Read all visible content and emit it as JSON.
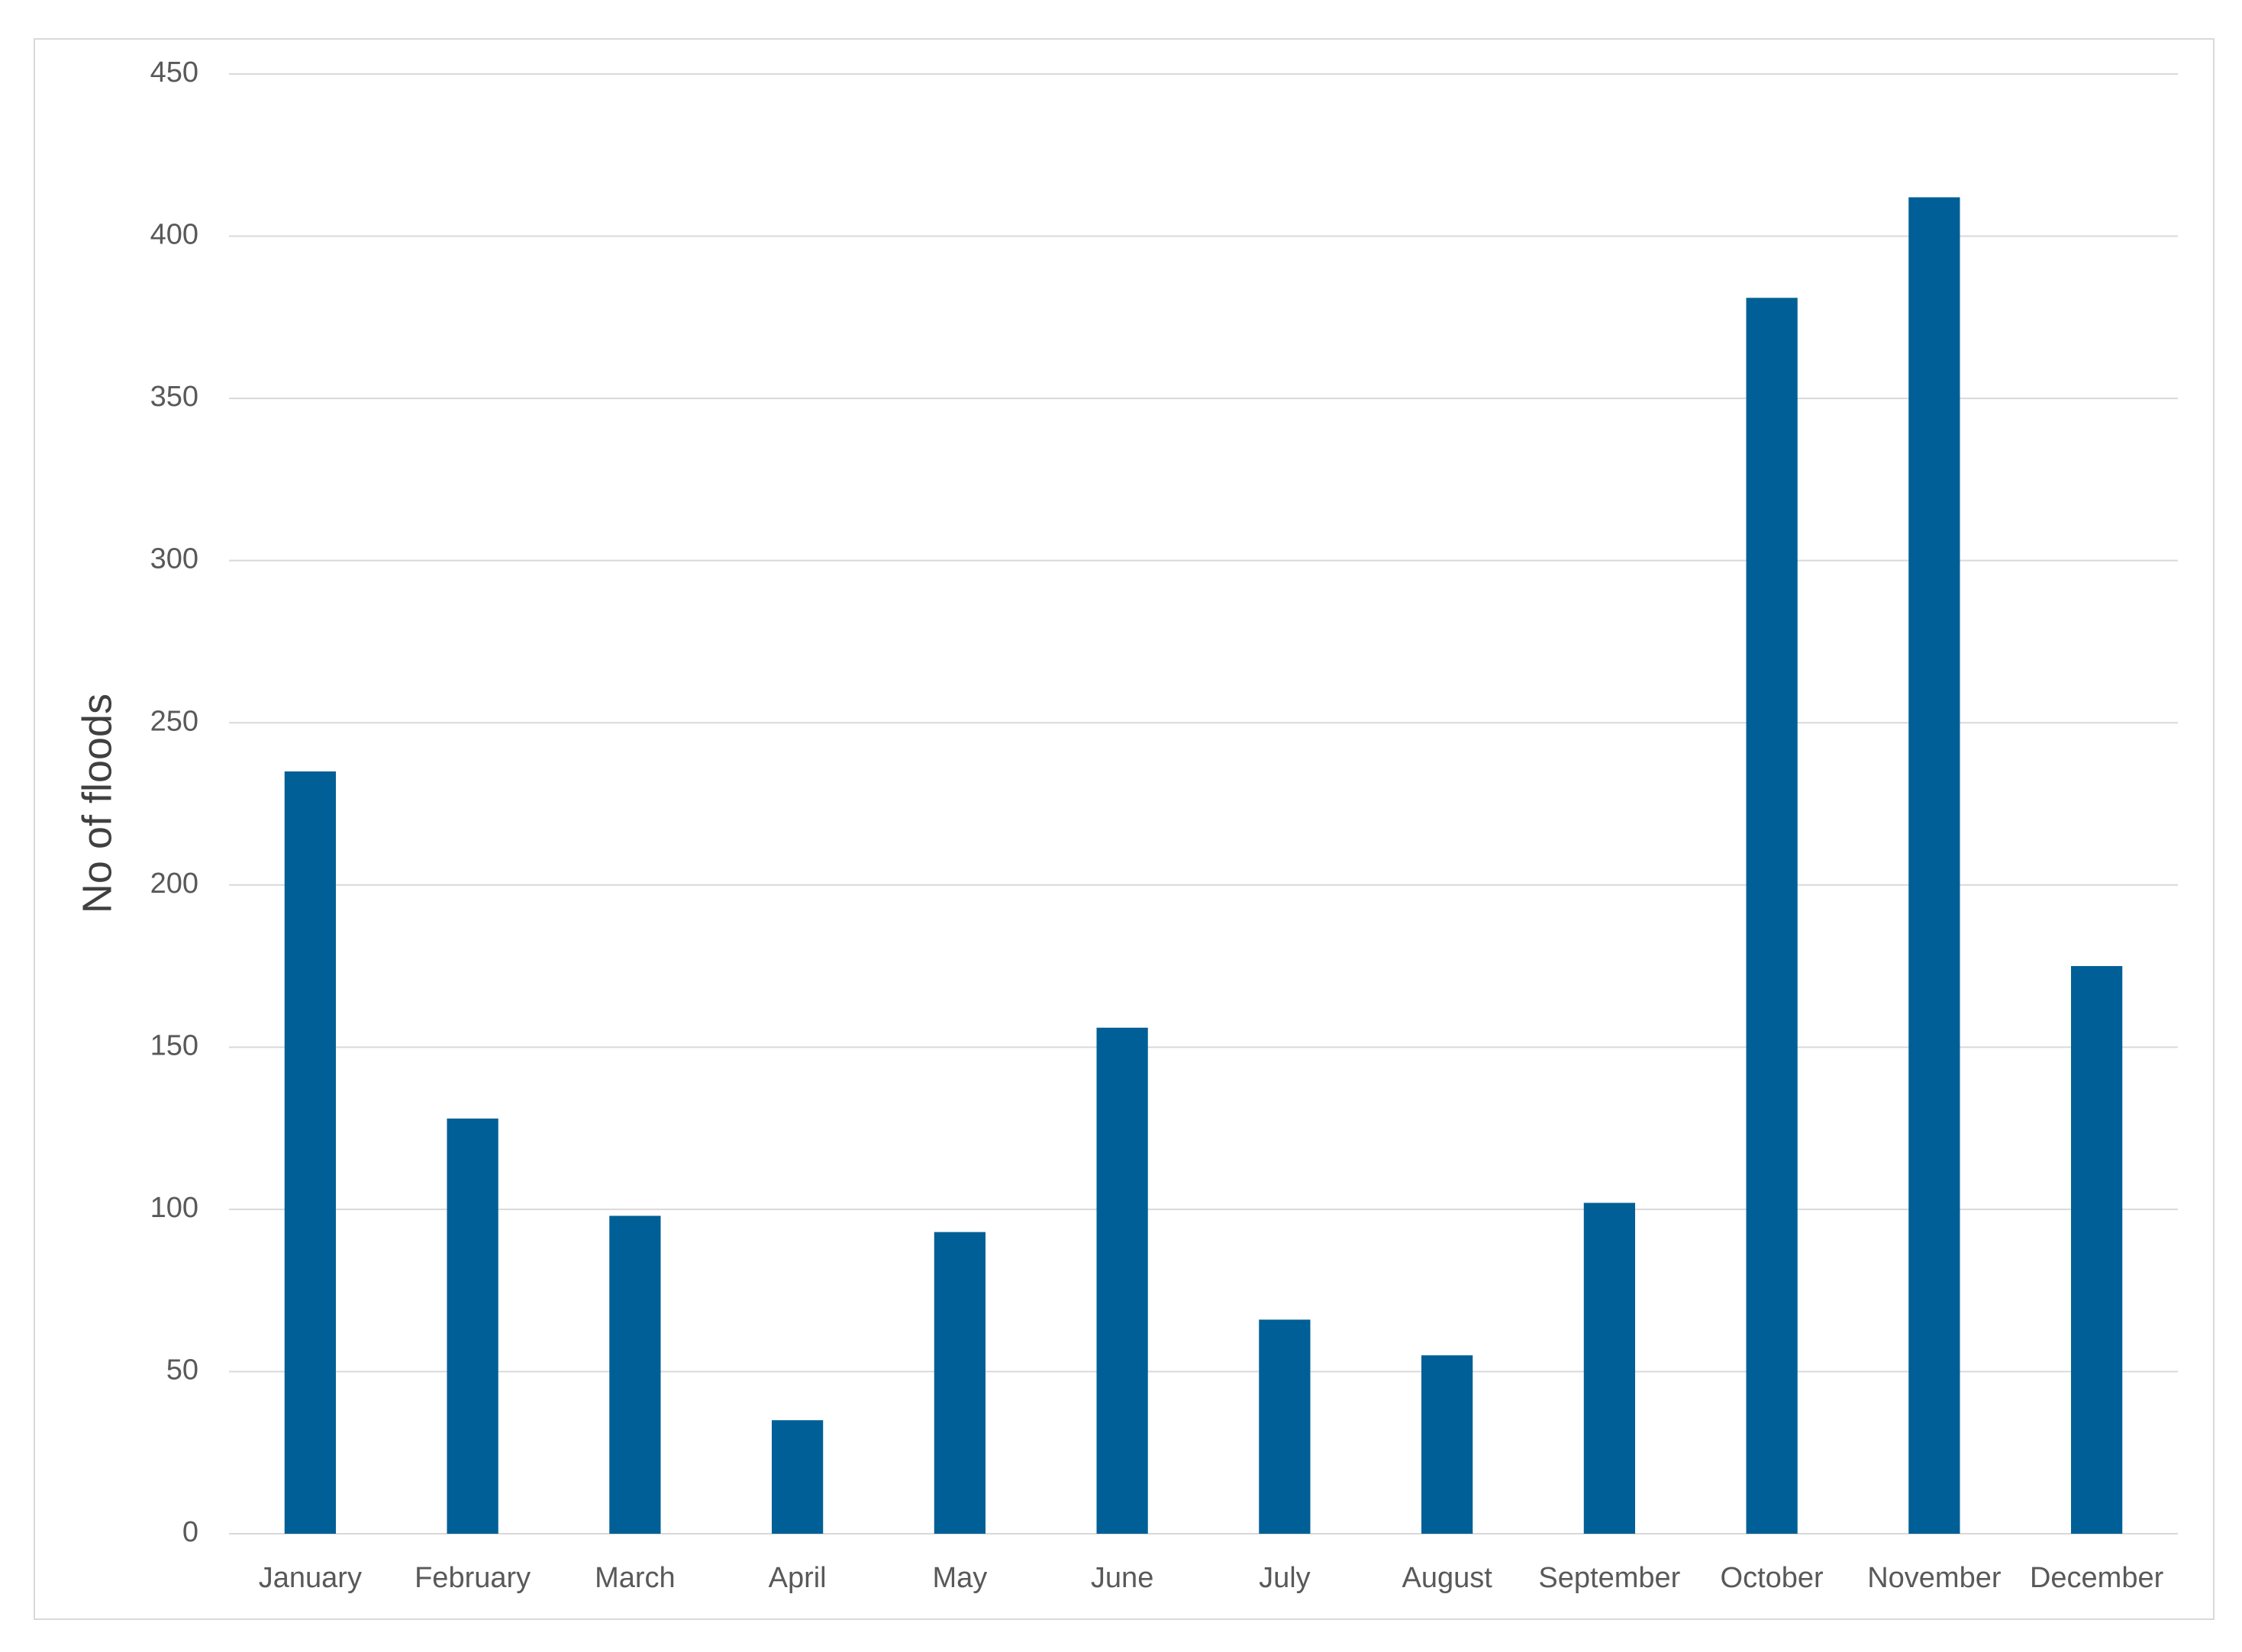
{
  "chart_data": {
    "type": "bar",
    "y_label": "No of floods",
    "categories": [
      "January",
      "February",
      "March",
      "April",
      "May",
      "June",
      "July",
      "August",
      "September",
      "October",
      "November",
      "December"
    ],
    "values": [
      235,
      128,
      98,
      35,
      93,
      156,
      66,
      55,
      102,
      381,
      412,
      175
    ],
    "color": "#005f96",
    "ylim": [
      0,
      450
    ],
    "yticks": [
      0,
      50,
      100,
      150,
      200,
      250,
      300,
      350,
      400,
      450
    ],
    "grid": true
  }
}
